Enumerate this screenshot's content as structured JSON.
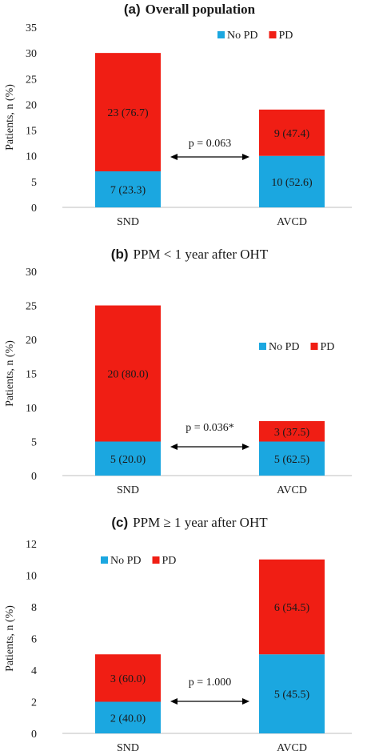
{
  "chart_data": [
    {
      "type": "bar",
      "stacked": true,
      "panel_label": "(a)",
      "title": "Overall population",
      "ylabel": "Patients, n (%)",
      "ylim": [
        0,
        35
      ],
      "yticks": [
        0,
        5,
        10,
        15,
        20,
        25,
        30,
        35
      ],
      "categories": [
        "SND",
        "AVCD"
      ],
      "legend_position": "top-right",
      "series": [
        {
          "name": "No PD",
          "color": "#1ba7e0",
          "values": [
            7,
            10
          ],
          "labels": [
            "7 (23.3)",
            "10 (52.6)"
          ]
        },
        {
          "name": "PD",
          "color": "#f01e14",
          "values": [
            23,
            9
          ],
          "labels": [
            "23 (76.7)",
            "9 (47.4)"
          ]
        }
      ],
      "annotation": "p = 0.063"
    },
    {
      "type": "bar",
      "stacked": true,
      "panel_label": "(b)",
      "title": "PPM < 1 year after OHT",
      "ylabel": "Patients, n (%)",
      "ylim": [
        0,
        30
      ],
      "yticks": [
        0,
        5,
        10,
        15,
        20,
        25,
        30
      ],
      "categories": [
        "SND",
        "AVCD"
      ],
      "legend_position": "right",
      "series": [
        {
          "name": "No PD",
          "color": "#1ba7e0",
          "values": [
            5,
            5
          ],
          "labels": [
            "5 (20.0)",
            "5 (62.5)"
          ]
        },
        {
          "name": "PD",
          "color": "#f01e14",
          "values": [
            20,
            3
          ],
          "labels": [
            "20 (80.0)",
            "3 (37.5)"
          ]
        }
      ],
      "annotation": "p = 0.036*"
    },
    {
      "type": "bar",
      "stacked": true,
      "panel_label": "(c)",
      "title": "PPM ≥ 1 year after OHT",
      "ylabel": "Patients, n (%)",
      "ylim": [
        0,
        12
      ],
      "yticks": [
        0,
        2,
        4,
        6,
        8,
        10,
        12
      ],
      "categories": [
        "SND",
        "AVCD"
      ],
      "legend_position": "top-left",
      "series": [
        {
          "name": "No PD",
          "color": "#1ba7e0",
          "values": [
            2,
            5
          ],
          "labels": [
            "2 (40.0)",
            "5 (45.5)"
          ]
        },
        {
          "name": "PD",
          "color": "#f01e14",
          "values": [
            3,
            6
          ],
          "labels": [
            "3 (60.0)",
            "6 (54.5)"
          ]
        }
      ],
      "annotation": "p = 1.000"
    }
  ]
}
